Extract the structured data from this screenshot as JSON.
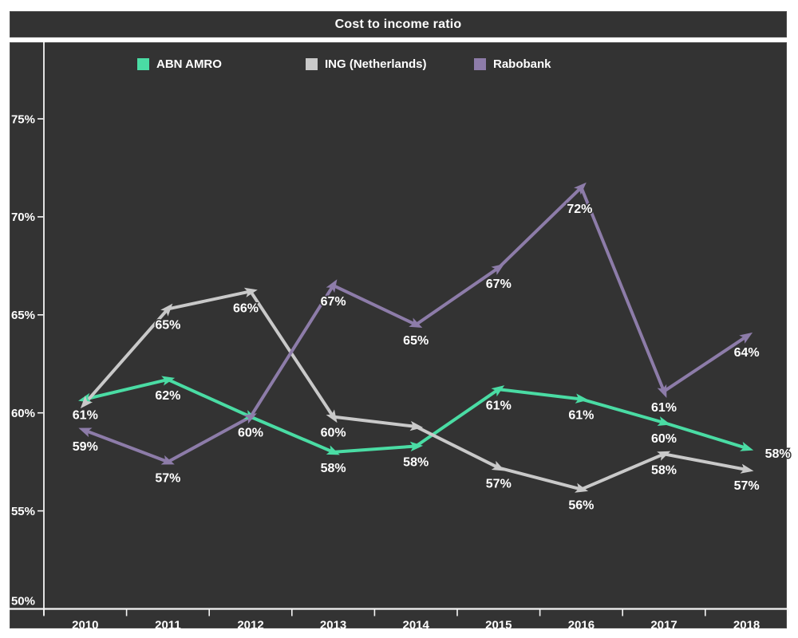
{
  "title": "Cost to income ratio",
  "colors": {
    "background": "#333333",
    "frame": "#ffffff",
    "axis": "#f5f5f5",
    "label_text": "#ffffff",
    "label_outline": "#333333"
  },
  "chart_data": {
    "type": "line",
    "title": "Cost to income ratio",
    "categories": [
      "2010",
      "2011",
      "2012",
      "2013",
      "2014",
      "2015",
      "2016",
      "2017",
      "2018"
    ],
    "series": [
      {
        "name": "ABN AMRO",
        "color": "#4ADCA4",
        "values": [
          60.7,
          61.7,
          59.8,
          58.0,
          58.3,
          61.2,
          60.7,
          59.5,
          58.2
        ],
        "point_labels": [
          "61%",
          "62%",
          "60%",
          "58%",
          "58%",
          "61%",
          "61%",
          "60%",
          "58%"
        ]
      },
      {
        "name": "ING (Netherlands)",
        "color": "#C9C9C9",
        "values": [
          60.5,
          65.3,
          66.2,
          59.8,
          59.3,
          57.2,
          56.1,
          57.9,
          57.1
        ],
        "point_labels": [
          "",
          "65%",
          "66%",
          "60%",
          "",
          "57%",
          "56%",
          "58%",
          "57%"
        ]
      },
      {
        "name": "Rabobank",
        "color": "#8D7CA9",
        "values": [
          59.1,
          57.5,
          59.8,
          66.5,
          64.5,
          67.4,
          71.5,
          61.1,
          63.9
        ],
        "point_labels": [
          "59%",
          "57%",
          "",
          "67%",
          "65%",
          "67%",
          "72%",
          "61%",
          "64%"
        ]
      }
    ],
    "y_ticks": [
      {
        "value": 50,
        "label": "50%"
      },
      {
        "value": 55,
        "label": "55%"
      },
      {
        "value": 60,
        "label": "60%"
      },
      {
        "value": 65,
        "label": "65%"
      },
      {
        "value": 70,
        "label": "70%"
      },
      {
        "value": 75,
        "label": "75%"
      }
    ],
    "ylim": [
      50,
      79
    ],
    "xlabel": "",
    "ylabel": "",
    "grid": false,
    "legend_position": "top",
    "marker": "arrow"
  }
}
